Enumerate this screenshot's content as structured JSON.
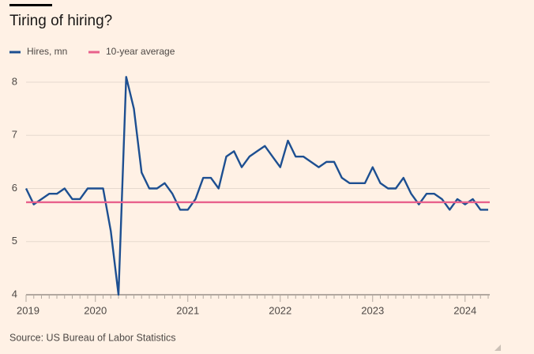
{
  "chart_data": {
    "type": "line",
    "title": "Tiring of hiring?",
    "source": "Source: US Bureau of Labor Statistics",
    "categories": [
      "2019",
      null,
      null,
      null,
      null,
      null,
      null,
      null,
      null,
      "2020",
      null,
      null,
      null,
      null,
      null,
      null,
      null,
      null,
      null,
      null,
      null,
      "2021",
      null,
      null,
      null,
      null,
      null,
      null,
      null,
      null,
      null,
      null,
      null,
      "2022",
      null,
      null,
      null,
      null,
      null,
      null,
      null,
      null,
      null,
      null,
      null,
      "2023",
      null,
      null,
      null,
      null,
      null,
      null,
      null,
      null,
      null,
      null,
      null,
      "2024",
      null,
      null,
      null
    ],
    "series": [
      {
        "name": "Hires, mn",
        "color": "#1d4f91",
        "values": [
          6.0,
          5.7,
          5.8,
          5.9,
          5.9,
          6.0,
          5.8,
          5.8,
          6.0,
          6.0,
          6.0,
          5.2,
          4.0,
          8.1,
          7.5,
          6.3,
          6.0,
          6.0,
          6.1,
          5.9,
          5.6,
          5.6,
          5.8,
          6.2,
          6.2,
          6.0,
          6.6,
          6.7,
          6.4,
          6.6,
          6.7,
          6.8,
          6.6,
          6.4,
          6.9,
          6.6,
          6.6,
          6.5,
          6.4,
          6.5,
          6.5,
          6.2,
          6.1,
          6.1,
          6.1,
          6.4,
          6.1,
          6.0,
          6.0,
          6.2,
          5.9,
          5.7,
          5.9,
          5.9,
          5.8,
          5.6,
          5.8,
          5.7,
          5.8,
          5.6,
          5.6
        ]
      },
      {
        "name": "10-year average",
        "color": "#e8618c",
        "value": 5.74
      }
    ],
    "ylim": [
      4,
      8
    ],
    "yticks": [
      4,
      5,
      6,
      7,
      8
    ],
    "grid": true
  }
}
